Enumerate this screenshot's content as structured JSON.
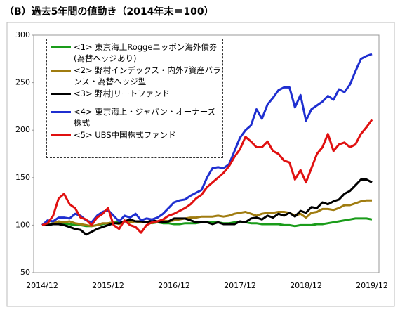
{
  "title": "（B）過去5年間の値動き（2014年末＝100）",
  "chart_data": {
    "type": "line",
    "categories": [
      "2014/12",
      null,
      null,
      null,
      null,
      null,
      null,
      null,
      null,
      null,
      null,
      null,
      "2015/12",
      null,
      null,
      null,
      null,
      null,
      null,
      null,
      null,
      null,
      null,
      null,
      "2016/12",
      null,
      null,
      null,
      null,
      null,
      null,
      null,
      null,
      null,
      null,
      null,
      "2017/12",
      null,
      null,
      null,
      null,
      null,
      null,
      null,
      null,
      null,
      null,
      null,
      "2018/12",
      null,
      null,
      null,
      null,
      null,
      null,
      null,
      null,
      null,
      null,
      null,
      "2019/12"
    ],
    "ylim": [
      50,
      300
    ],
    "yticks": [
      50,
      100,
      150,
      200,
      250,
      300
    ],
    "grid": false,
    "series": [
      {
        "name": "<1> 東京海上Roggeニッポン海外債券(為替ヘッジあり)",
        "color": "#1a9c1a",
        "values": [
          100,
          101,
          102,
          102,
          101,
          101,
          100,
          100,
          99,
          99,
          100,
          101,
          102,
          103,
          103,
          104,
          104,
          104,
          103,
          103,
          102,
          103,
          102,
          102,
          101,
          101,
          102,
          102,
          102,
          103,
          103,
          103,
          103,
          102,
          102,
          103,
          103,
          103,
          102,
          102,
          101,
          101,
          101,
          101,
          100,
          100,
          99,
          100,
          100,
          100,
          101,
          101,
          102,
          103,
          104,
          105,
          106,
          107,
          107,
          107,
          106
        ]
      },
      {
        "name": "<2> 野村インデックス・内外7資産バランス・為替ヘッジ型",
        "color": "#a07c10",
        "values": [
          100,
          100,
          102,
          104,
          103,
          104,
          102,
          101,
          100,
          99,
          100,
          102,
          102,
          103,
          101,
          104,
          103,
          104,
          103,
          103,
          102,
          104,
          105,
          104,
          105,
          106,
          107,
          108,
          108,
          109,
          109,
          109,
          110,
          109,
          110,
          112,
          113,
          114,
          112,
          110,
          112,
          113,
          113,
          114,
          114,
          113,
          110,
          112,
          108,
          113,
          114,
          117,
          117,
          116,
          118,
          121,
          121,
          123,
          125,
          126,
          126
        ]
      },
      {
        "name": "<3> 野村Jリートファンド",
        "color": "#000000",
        "values": [
          100,
          100,
          101,
          101,
          100,
          98,
          96,
          95,
          90,
          93,
          96,
          98,
          100,
          102,
          102,
          104,
          106,
          104,
          104,
          103,
          105,
          104,
          103,
          104,
          107,
          107,
          107,
          105,
          103,
          103,
          103,
          101,
          103,
          101,
          101,
          101,
          104,
          103,
          107,
          108,
          106,
          110,
          108,
          112,
          110,
          113,
          109,
          115,
          113,
          119,
          118,
          124,
          122,
          125,
          127,
          133,
          136,
          142,
          148,
          148,
          145
        ]
      },
      {
        "name": "<4> 東京海上・ジャパン・オーナーズ株式",
        "color": "#1f2fd0",
        "values": [
          100,
          105,
          104,
          108,
          108,
          107,
          112,
          110,
          105,
          103,
          110,
          114,
          116,
          110,
          104,
          110,
          108,
          112,
          105,
          107,
          106,
          108,
          112,
          118,
          124,
          126,
          127,
          131,
          134,
          137,
          150,
          160,
          161,
          160,
          164,
          178,
          192,
          200,
          205,
          222,
          212,
          227,
          234,
          242,
          245,
          245,
          224,
          237,
          210,
          222,
          226,
          230,
          236,
          232,
          243,
          240,
          248,
          262,
          275,
          278,
          280
        ]
      },
      {
        "name": "<5> UBS中国株式ファンド",
        "color": "#e01010",
        "values": [
          100,
          102,
          110,
          128,
          133,
          122,
          118,
          108,
          106,
          100,
          108,
          112,
          118,
          100,
          96,
          105,
          100,
          98,
          92,
          100,
          103,
          104,
          106,
          110,
          112,
          115,
          118,
          122,
          128,
          132,
          140,
          145,
          150,
          155,
          162,
          172,
          180,
          193,
          188,
          182,
          182,
          188,
          178,
          175,
          168,
          166,
          148,
          158,
          145,
          160,
          175,
          182,
          196,
          178,
          185,
          187,
          182,
          185,
          196,
          203,
          211
        ]
      }
    ]
  }
}
